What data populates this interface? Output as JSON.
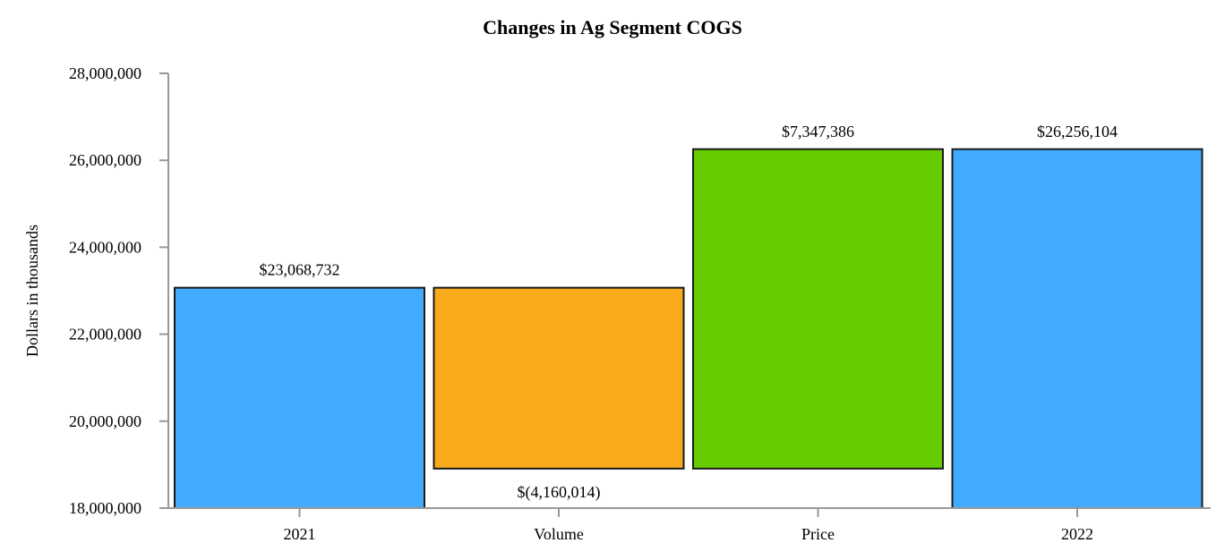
{
  "chart_data": {
    "type": "waterfall",
    "title": "Changes in Ag Segment COGS",
    "xlabel": "",
    "ylabel": "Dollars in thousands",
    "ylim": [
      18000000,
      28000000
    ],
    "yticks": [
      18000000,
      20000000,
      22000000,
      24000000,
      26000000,
      28000000
    ],
    "ytick_labels": [
      "18,000,000",
      "20,000,000",
      "22,000,000",
      "24,000,000",
      "26,000,000",
      "28,000,000"
    ],
    "categories": [
      "2021",
      "Volume",
      "Price",
      "2022"
    ],
    "values": [
      23068732,
      -4160014,
      7347386,
      26256104
    ],
    "bars": [
      {
        "category": "2021",
        "kind": "total",
        "start": 18000000,
        "end": 23068732,
        "label": "$23,068,732",
        "label_pos": "above",
        "color": "#41abff"
      },
      {
        "category": "Volume",
        "kind": "delta",
        "start": 18908718,
        "end": 23068732,
        "label": "$(4,160,014)",
        "label_pos": "below",
        "color": "#f8aa1a"
      },
      {
        "category": "Price",
        "kind": "delta",
        "start": 18908718,
        "end": 26256104,
        "label": "$7,347,386",
        "label_pos": "above",
        "color": "#66cc00"
      },
      {
        "category": "2022",
        "kind": "total",
        "start": 18000000,
        "end": 26256104,
        "label": "$26,256,104",
        "label_pos": "above",
        "color": "#41abff"
      }
    ],
    "grid": false,
    "legend": null
  }
}
